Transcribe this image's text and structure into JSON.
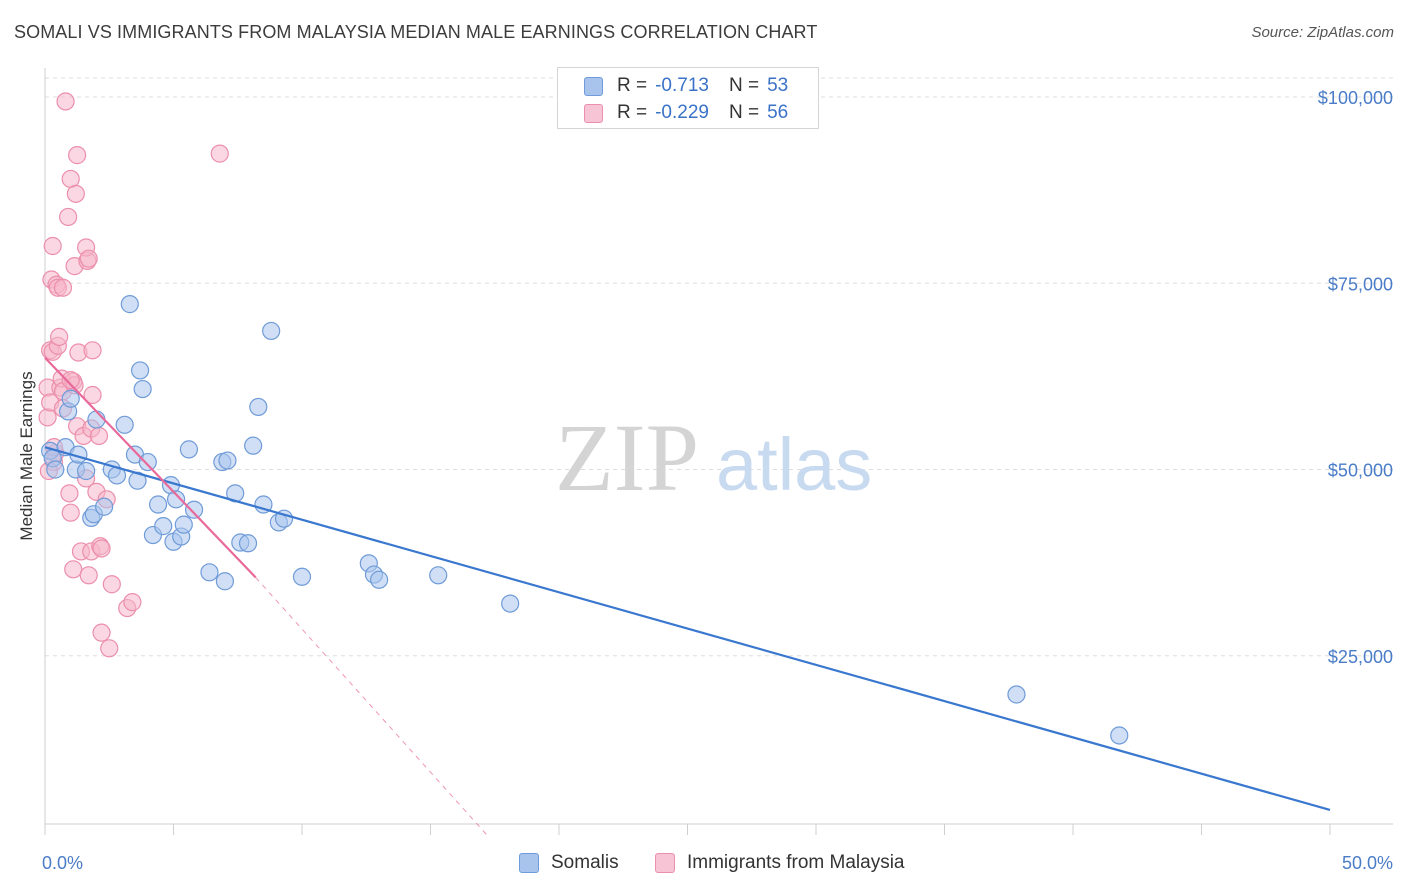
{
  "header": {
    "title": "SOMALI VS IMMIGRANTS FROM MALAYSIA MEDIAN MALE EARNINGS CORRELATION CHART",
    "source": "Source: ZipAtlas.com"
  },
  "watermark": {
    "zip": "ZIP",
    "atlas": "atlas"
  },
  "legend_top": [
    {
      "r_label": "R =",
      "r_value": "-0.713",
      "n_label": "N =",
      "n_value": "53"
    },
    {
      "r_label": "R =",
      "r_value": "-0.229",
      "n_label": "N =",
      "n_value": "56"
    }
  ],
  "colors": {
    "somalis_fill": "#a9c4ec",
    "somalis_stroke": "#6f9bd8",
    "somalis_line": "#3a78cf",
    "malaysia_fill": "#f6b6cb",
    "malaysia_stroke": "#ec8fac",
    "malaysia_line": "#e8699a",
    "tick_text": "#4a7cc7",
    "grid": "#dddddd"
  },
  "chart_data": {
    "type": "scatter",
    "title": "SOMALI VS IMMIGRANTS FROM MALAYSIA MEDIAN MALE EARNINGS CORRELATION CHART",
    "xlabel": "",
    "ylabel": "Median Male Earnings",
    "xlim": [
      0,
      50
    ],
    "ylim": [
      0,
      105000
    ],
    "x_tick_labels": [
      "0.0%",
      "50.0%"
    ],
    "y_ticks": [
      25000,
      50000,
      75000,
      100000
    ],
    "y_tick_labels": [
      "$25,000",
      "$50,000",
      "$75,000",
      "$100,000"
    ],
    "grid": true,
    "legend_placement": "bottom",
    "series": [
      {
        "name": "Somalis",
        "r": -0.713,
        "n": 53,
        "trend": {
          "x": [
            0.0,
            50.0
          ],
          "y": [
            53000,
            4300
          ]
        },
        "points": [
          [
            0.2,
            52500
          ],
          [
            0.3,
            51500
          ],
          [
            0.4,
            50000
          ],
          [
            0.8,
            53000
          ],
          [
            0.9,
            57800
          ],
          [
            1.0,
            59500
          ],
          [
            1.2,
            50000
          ],
          [
            1.3,
            52000
          ],
          [
            1.6,
            49800
          ],
          [
            1.8,
            43500
          ],
          [
            1.9,
            44000
          ],
          [
            2.0,
            56700
          ],
          [
            2.3,
            45000
          ],
          [
            2.6,
            50000
          ],
          [
            2.8,
            49200
          ],
          [
            3.1,
            56000
          ],
          [
            3.3,
            72200
          ],
          [
            3.5,
            52000
          ],
          [
            3.6,
            48500
          ],
          [
            3.7,
            63300
          ],
          [
            3.8,
            60800
          ],
          [
            4.0,
            51000
          ],
          [
            4.2,
            41200
          ],
          [
            4.4,
            45300
          ],
          [
            4.6,
            42400
          ],
          [
            4.9,
            47900
          ],
          [
            5.0,
            40300
          ],
          [
            5.1,
            46000
          ],
          [
            5.3,
            41000
          ],
          [
            5.4,
            42600
          ],
          [
            5.6,
            52700
          ],
          [
            5.8,
            44600
          ],
          [
            6.4,
            36200
          ],
          [
            6.9,
            51000
          ],
          [
            7.0,
            35000
          ],
          [
            7.1,
            51200
          ],
          [
            7.4,
            46800
          ],
          [
            7.6,
            40200
          ],
          [
            7.9,
            40100
          ],
          [
            8.1,
            53200
          ],
          [
            8.3,
            58400
          ],
          [
            8.5,
            45300
          ],
          [
            8.8,
            68600
          ],
          [
            9.1,
            42900
          ],
          [
            9.3,
            43400
          ],
          [
            10.0,
            35600
          ],
          [
            12.6,
            37400
          ],
          [
            12.8,
            35900
          ],
          [
            13.0,
            35200
          ],
          [
            15.3,
            35800
          ],
          [
            18.1,
            32000
          ],
          [
            37.8,
            19800
          ],
          [
            41.8,
            14300
          ]
        ]
      },
      {
        "name": "Immigrants from Malaysia",
        "r": -0.229,
        "n": 56,
        "trend": {
          "x": [
            0.0,
            8.2
          ],
          "y": [
            65000,
            35500
          ],
          "dashed_to": {
            "x": 17.3,
            "y": 0
          }
        },
        "points": [
          [
            0.1,
            57000
          ],
          [
            0.1,
            61000
          ],
          [
            0.2,
            59000
          ],
          [
            0.2,
            66000
          ],
          [
            0.25,
            75500
          ],
          [
            0.3,
            65800
          ],
          [
            0.3,
            80000
          ],
          [
            0.35,
            51000
          ],
          [
            0.4,
            52200
          ],
          [
            0.45,
            74800
          ],
          [
            0.5,
            74400
          ],
          [
            0.5,
            66600
          ],
          [
            0.55,
            67800
          ],
          [
            0.6,
            61000
          ],
          [
            0.65,
            62200
          ],
          [
            0.7,
            60500
          ],
          [
            0.7,
            58200
          ],
          [
            0.7,
            74400
          ],
          [
            0.8,
            99400
          ],
          [
            0.9,
            83900
          ],
          [
            0.95,
            46800
          ],
          [
            1.0,
            44200
          ],
          [
            1.0,
            89000
          ],
          [
            1.1,
            61800
          ],
          [
            1.1,
            36600
          ],
          [
            1.15,
            61300
          ],
          [
            1.15,
            77300
          ],
          [
            1.2,
            87000
          ],
          [
            1.25,
            55800
          ],
          [
            1.25,
            92200
          ],
          [
            1.3,
            65700
          ],
          [
            1.4,
            39000
          ],
          [
            1.5,
            54500
          ],
          [
            1.6,
            48800
          ],
          [
            1.65,
            78000
          ],
          [
            1.6,
            79800
          ],
          [
            1.7,
            78300
          ],
          [
            1.7,
            35800
          ],
          [
            1.8,
            39000
          ],
          [
            1.8,
            55500
          ],
          [
            1.85,
            66000
          ],
          [
            1.85,
            60000
          ],
          [
            2.0,
            47000
          ],
          [
            2.1,
            54500
          ],
          [
            2.15,
            39700
          ],
          [
            2.2,
            39400
          ],
          [
            2.2,
            28100
          ],
          [
            2.4,
            46000
          ],
          [
            2.5,
            26000
          ],
          [
            2.6,
            34600
          ],
          [
            3.2,
            31400
          ],
          [
            3.4,
            32200
          ],
          [
            6.8,
            92400
          ],
          [
            0.15,
            49800
          ],
          [
            1.0,
            62000
          ],
          [
            0.35,
            53000
          ]
        ]
      }
    ]
  }
}
